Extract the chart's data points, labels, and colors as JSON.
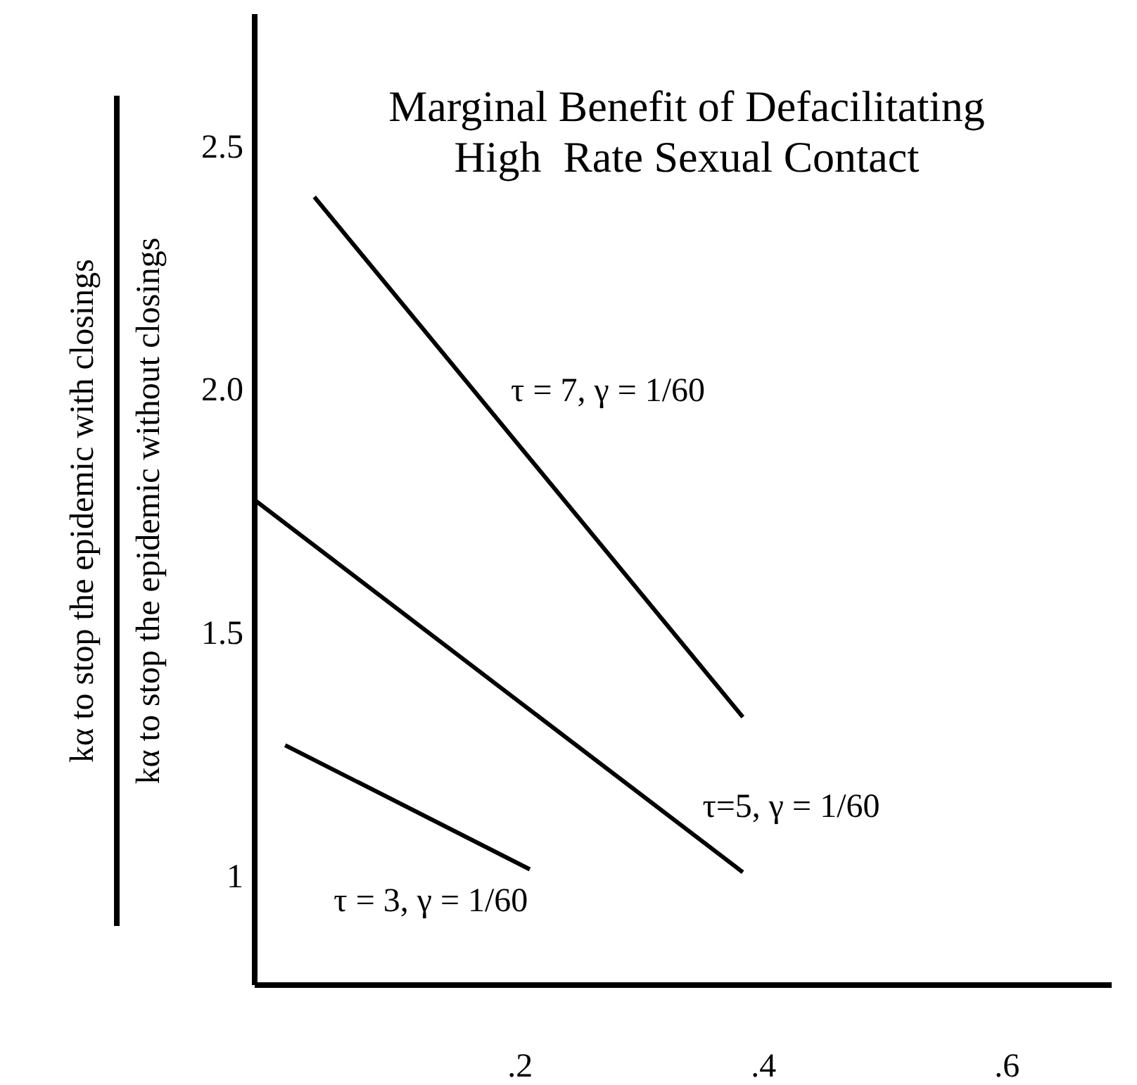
{
  "chart_data": {
    "type": "line",
    "title": "Marginal Benefit of Defacilitating\nHigh  Rate Sexual Contact",
    "ylabel": "kα to stop the epidemic with closings\nkα to stop the epidemic without closings",
    "series": [
      {
        "name": "τ = 7, γ = 1/60",
        "x": [
          0.031,
          0.383
        ],
        "values": [
          2.394,
          1.325
        ],
        "color": "#000000"
      },
      {
        "name": "τ=5, γ = 1/60",
        "x": [
          -0.018,
          0.383
        ],
        "values": [
          1.771,
          1.006
        ],
        "color": "#000000"
      },
      {
        "name": "τ = 3, γ = 1/60",
        "x": [
          0.007,
          0.208
        ],
        "values": [
          1.267,
          1.012
        ],
        "color": "#000000"
      }
    ],
    "xlim": [
      -0.018,
      0.686
    ],
    "xticks": [
      {
        "value": 0.2,
        "label": ".2"
      },
      {
        "value": 0.4,
        "label": ".4"
      },
      {
        "value": 0.6,
        "label": ".6"
      }
    ],
    "ylim": [
      0.774,
      2.77
    ],
    "yticks": [
      1,
      1.5,
      {
        "value": 2,
        "label": "2.0"
      },
      2.5
    ],
    "marker": "none",
    "line_style": "solid"
  }
}
